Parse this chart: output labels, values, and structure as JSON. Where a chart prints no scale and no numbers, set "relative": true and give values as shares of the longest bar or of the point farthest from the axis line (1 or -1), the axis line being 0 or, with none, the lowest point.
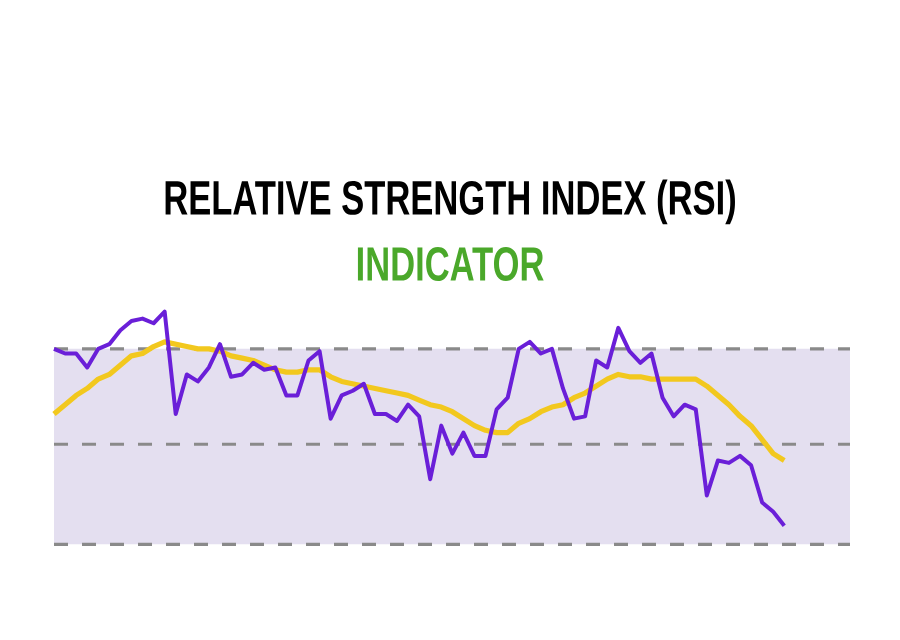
{
  "chart_data": {
    "type": "line",
    "title": "RELATIVE STRENGTH INDEX (RSI)",
    "subtitle": "INDICATOR",
    "relative": true,
    "marker": "none",
    "line_style": "solid",
    "categories": [
      null,
      null,
      null,
      null,
      null,
      null,
      null,
      null,
      null,
      null,
      null,
      null,
      null,
      null,
      null,
      null,
      null,
      null,
      null,
      null,
      null,
      null,
      null,
      null,
      null,
      null,
      null,
      null,
      null,
      null,
      null,
      null,
      null,
      null,
      null,
      null,
      null,
      null,
      null,
      null,
      null,
      null,
      null,
      null,
      null,
      null,
      null,
      null,
      null,
      null,
      null,
      null,
      null,
      null,
      null,
      null,
      null,
      null,
      null,
      null,
      null,
      null,
      null,
      null,
      null,
      null,
      null
    ],
    "series": [
      {
        "color": "#6a1fd8",
        "values": [
          0.84,
          0.82,
          0.82,
          0.76,
          0.84,
          0.86,
          0.92,
          0.96,
          0.97,
          0.95,
          1,
          0.56,
          0.73,
          0.7,
          0.76,
          0.86,
          0.72,
          0.73,
          0.78,
          0.75,
          0.76,
          0.64,
          0.64,
          0.79,
          0.83,
          0.54,
          0.64,
          0.66,
          0.69,
          0.56,
          0.56,
          0.53,
          0.6,
          0.55,
          0.28,
          0.51,
          0.39,
          0.48,
          0.38,
          0.38,
          0.58,
          0.63,
          0.84,
          0.87,
          0.82,
          0.84,
          0.67,
          0.54,
          0.55,
          0.79,
          0.76,
          0.93,
          0.83,
          0.78,
          0.82,
          0.63,
          0.55,
          0.6,
          0.58,
          0.21,
          0.36,
          0.35,
          0.38,
          0.34,
          0.18,
          0.14,
          0.08
        ]
      },
      {
        "color": "#f2c81e",
        "values": [
          0.56,
          0.6,
          0.64,
          0.67,
          0.71,
          0.73,
          0.77,
          0.81,
          0.82,
          0.85,
          0.87,
          0.86,
          0.85,
          0.84,
          0.84,
          0.83,
          0.81,
          0.8,
          0.79,
          0.77,
          0.75,
          0.74,
          0.74,
          0.75,
          0.75,
          0.72,
          0.7,
          0.69,
          0.68,
          0.67,
          0.66,
          0.65,
          0.64,
          0.62,
          0.6,
          0.59,
          0.57,
          0.54,
          0.51,
          0.49,
          0.48,
          0.48,
          0.52,
          0.54,
          0.57,
          0.59,
          0.6,
          0.63,
          0.65,
          0.68,
          0.71,
          0.73,
          0.72,
          0.72,
          0.71,
          0.71,
          0.71,
          0.71,
          0.71,
          0.68,
          0.64,
          0.6,
          0.55,
          0.51,
          0.45,
          0.39,
          0.36
        ]
      }
    ],
    "bands": [
      {
        "axis": "y",
        "from": 0,
        "to": 0.84,
        "color": "#e4dff0"
      }
    ],
    "ref_lines": [
      {
        "axis": "y",
        "value": 0.84,
        "color": "#8a8a8a",
        "line_style": "dashed"
      },
      {
        "axis": "y",
        "value": 0.43,
        "color": "#8a8a8a",
        "line_style": "dashed"
      },
      {
        "axis": "y",
        "value": 0,
        "color": "#8a8a8a",
        "line_style": "dashed"
      }
    ]
  }
}
